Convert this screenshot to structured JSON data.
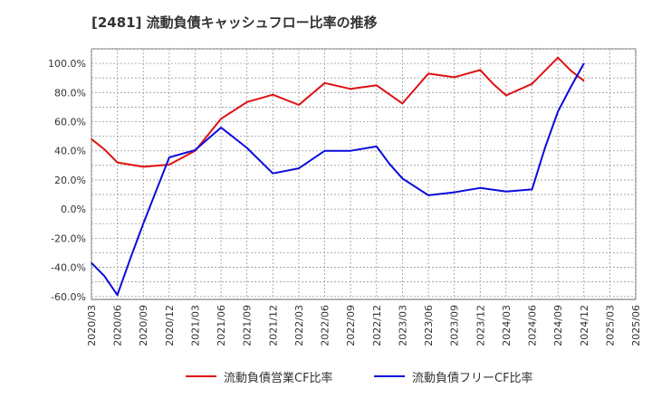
{
  "title": "[2481]  流動負債キャッシュフロー比率の推移",
  "colors": {
    "series1": "#dd1111",
    "series2": "#0b0bdd",
    "grid": "#999999",
    "axis": "#666666",
    "text": "#333333"
  },
  "chart_data": {
    "type": "line",
    "title": "[2481]  流動負債キャッシュフロー比率の推移",
    "xlabel": "",
    "ylabel": "",
    "ylim": [
      -62,
      110
    ],
    "yticks": [
      -60,
      -40,
      -20,
      0,
      20,
      40,
      60,
      80,
      100
    ],
    "ytick_labels": [
      "-60.0%",
      "-40.0%",
      "-20.0%",
      "0.0%",
      "20.0%",
      "40.0%",
      "60.0%",
      "80.0%",
      "100.0%"
    ],
    "x_ticks": [
      "2020/03",
      "2020/06",
      "2020/09",
      "2020/12",
      "2021/03",
      "2021/06",
      "2021/09",
      "2021/12",
      "2022/03",
      "2022/06",
      "2022/09",
      "2022/12",
      "2023/03",
      "2023/06",
      "2023/09",
      "2023/12",
      "2024/03",
      "2024/06",
      "2024/09",
      "2024/12",
      "2025/03",
      "2025/06"
    ],
    "grid": true,
    "legend_position": "bottom",
    "series": [
      {
        "name": "流動負債営業CF比率",
        "color": "#dd1111",
        "x_index": [
          0,
          0.5,
          1,
          2,
          3,
          4,
          5,
          6,
          7,
          8,
          9,
          10,
          11,
          12,
          13,
          14,
          15,
          15.5,
          16,
          17,
          18,
          18.5,
          19
        ],
        "values": [
          48,
          41,
          32,
          29,
          30.5,
          40,
          62,
          73.5,
          78.5,
          71.5,
          86.5,
          82.5,
          85,
          72.5,
          93,
          90.5,
          95.5,
          86,
          78,
          86,
          104,
          95,
          88
        ]
      },
      {
        "name": "流動負債フリーCF比率",
        "color": "#0b0bdd",
        "x_index": [
          0,
          0.5,
          1,
          1.5,
          2,
          3,
          4,
          5,
          6,
          7,
          8,
          9,
          10,
          11,
          11.5,
          12,
          13,
          14,
          15,
          16,
          17,
          17.5,
          18,
          18.5,
          19
        ],
        "values": [
          -37,
          -46,
          -59,
          -34,
          -10,
          35.5,
          40.5,
          56,
          42,
          24.5,
          28,
          40,
          40,
          43,
          31,
          21,
          9.5,
          11.5,
          14.5,
          12,
          13.5,
          42,
          67,
          84,
          100
        ]
      }
    ]
  }
}
